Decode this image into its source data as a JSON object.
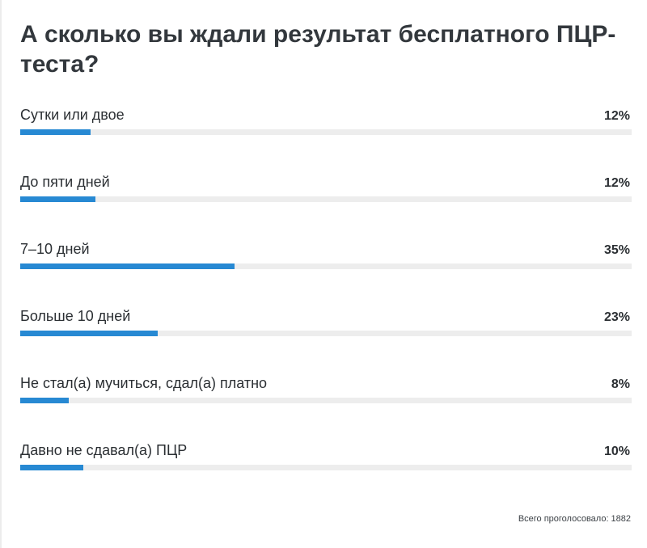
{
  "poll": {
    "title": "А сколько вы ждали результат бесплатного ПЦР-теста?",
    "bar_color": "#2789d3",
    "track_color": "#ededed",
    "options": [
      {
        "label": "Сутки или двое",
        "percent_text": "12%",
        "percent": 11.5
      },
      {
        "label": "До пяти дней",
        "percent_text": "12%",
        "percent": 12.3
      },
      {
        "label": "7–10 дней",
        "percent_text": "35%",
        "percent": 35.0
      },
      {
        "label": "Больше 10 дней",
        "percent_text": "23%",
        "percent": 22.5
      },
      {
        "label": "Не стал(а) мучиться, сдал(а) платно",
        "percent_text": "8%",
        "percent": 8.0
      },
      {
        "label": "Давно не сдавал(а) ПЦР",
        "percent_text": "10%",
        "percent": 10.3
      }
    ],
    "total_label": "Всего проголосовало:",
    "total_count": "1882"
  }
}
